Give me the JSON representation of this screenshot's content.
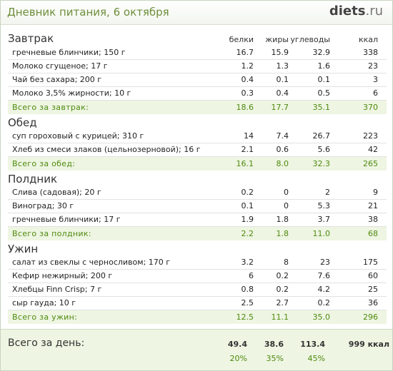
{
  "header": {
    "title": "Дневник питания, 6 октября",
    "logo_main": "diets",
    "logo_suffix": ".ru"
  },
  "columns": {
    "protein": "белки",
    "fat": "жиры",
    "carbs": "углеводы",
    "kcal": "ккал"
  },
  "meals": [
    {
      "title": "Завтрак",
      "items": [
        {
          "name": "гречневые блинчики; 150 г",
          "protein": "16.7",
          "fat": "15.9",
          "carbs": "32.9",
          "kcal": "338"
        },
        {
          "name": "Молоко сгущеное; 17 г",
          "protein": "1.2",
          "fat": "1.3",
          "carbs": "1.6",
          "kcal": "23"
        },
        {
          "name": "Чай без сахара; 200 г",
          "protein": "0.4",
          "fat": "0.1",
          "carbs": "0.1",
          "kcal": "3"
        },
        {
          "name": "Молоко 3,5% жирности; 10 г",
          "protein": "0.3",
          "fat": "0.4",
          "carbs": "0.5",
          "kcal": "6"
        }
      ],
      "total": {
        "label": "Всего за завтрак:",
        "protein": "18.6",
        "fat": "17.7",
        "carbs": "35.1",
        "kcal": "370"
      }
    },
    {
      "title": "Обед",
      "items": [
        {
          "name": "суп гороховый с курицей; 310 г",
          "protein": "14",
          "fat": "7.4",
          "carbs": "26.7",
          "kcal": "223"
        },
        {
          "name": "Хлеб из смеси злаков (цельнозерновой); 16 г",
          "protein": "2.1",
          "fat": "0.6",
          "carbs": "5.6",
          "kcal": "42"
        }
      ],
      "total": {
        "label": "Всего за обед:",
        "protein": "16.1",
        "fat": "8.0",
        "carbs": "32.3",
        "kcal": "265"
      }
    },
    {
      "title": "Полдник",
      "items": [
        {
          "name": "Слива (садовая); 20 г",
          "protein": "0.2",
          "fat": "0",
          "carbs": "2",
          "kcal": "9"
        },
        {
          "name": "Виноград; 30 г",
          "protein": "0.1",
          "fat": "0",
          "carbs": "5.3",
          "kcal": "21"
        },
        {
          "name": "гречневые блинчики; 17 г",
          "protein": "1.9",
          "fat": "1.8",
          "carbs": "3.7",
          "kcal": "38"
        }
      ],
      "total": {
        "label": "Всего за полдник:",
        "protein": "2.2",
        "fat": "1.8",
        "carbs": "11.0",
        "kcal": "68"
      }
    },
    {
      "title": "Ужин",
      "items": [
        {
          "name": "салат из свеклы с черносливом; 170 г",
          "protein": "3.2",
          "fat": "8",
          "carbs": "23",
          "kcal": "175"
        },
        {
          "name": "Кефир нежирный; 200 г",
          "protein": "6",
          "fat": "0.2",
          "carbs": "7.6",
          "kcal": "60"
        },
        {
          "name": "Хлебцы Finn Crisp; 7 г",
          "protein": "0.8",
          "fat": "0.2",
          "carbs": "4.2",
          "kcal": "25"
        },
        {
          "name": "сыр гауда; 10 г",
          "protein": "2.5",
          "fat": "2.7",
          "carbs": "0.2",
          "kcal": "36"
        }
      ],
      "total": {
        "label": "Всего за ужин:",
        "protein": "12.5",
        "fat": "11.1",
        "carbs": "35.0",
        "kcal": "296"
      }
    }
  ],
  "day_total": {
    "label": "Всего за день:",
    "protein": "49.4",
    "fat": "38.6",
    "carbs": "113.4",
    "kcal": "999 ккал",
    "protein_pct": "20%",
    "fat_pct": "35%",
    "carbs_pct": "45%"
  }
}
